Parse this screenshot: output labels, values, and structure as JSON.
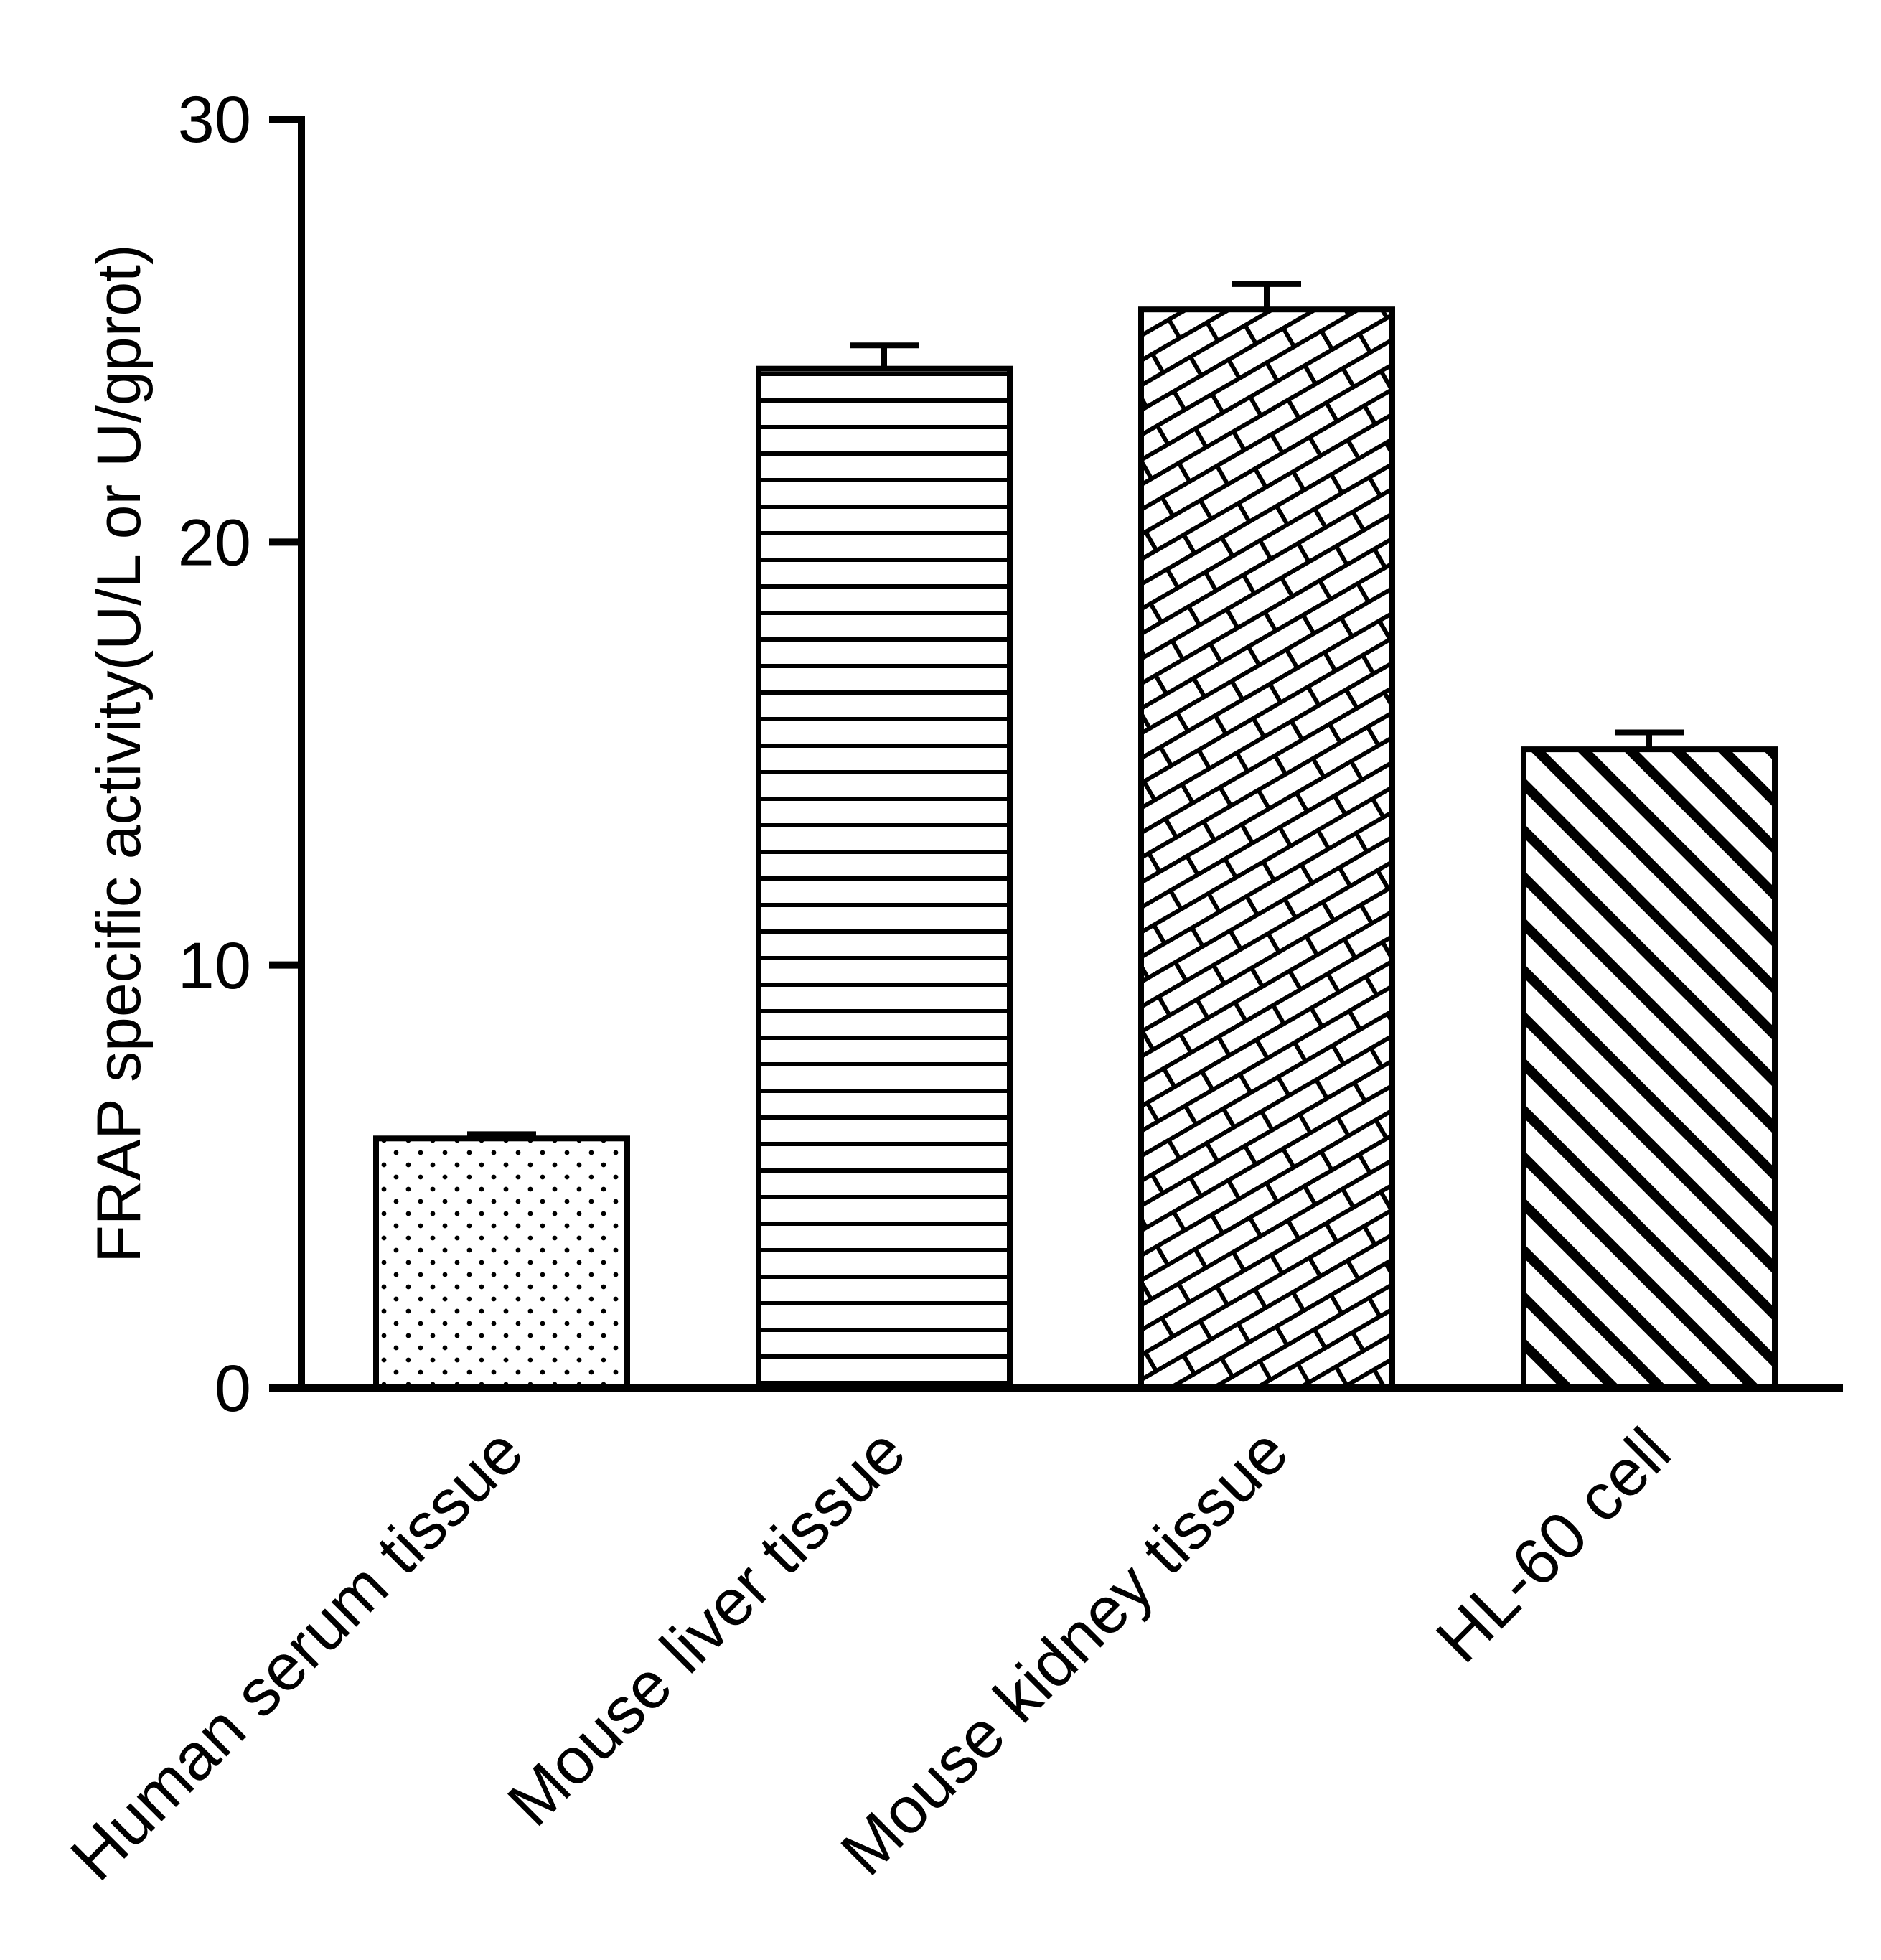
{
  "chart_data": {
    "type": "bar",
    "categories": [
      "Human serum tissue",
      "Mouse liver tissue",
      "Mouse kidney tissue",
      "HL-60 cell"
    ],
    "values": [
      5.9,
      24.1,
      25.5,
      15.1
    ],
    "errors": [
      0.1,
      0.55,
      0.6,
      0.4
    ],
    "ylabel": "FRAP specific activity(U/L or U/gprot)",
    "ylim": [
      0,
      30
    ],
    "yticks": [
      "0",
      "10",
      "20",
      "30"
    ],
    "bar_patterns": [
      "dots",
      "horizontal-lines",
      "bricks",
      "diagonal-lines"
    ],
    "bar_fill_color": "#ffffff",
    "stroke_color": "#000000",
    "background_color": "#ffffff",
    "grid": false,
    "legend": "none",
    "error_bars": "upper with cap",
    "x_label_rotation_deg": -45
  }
}
